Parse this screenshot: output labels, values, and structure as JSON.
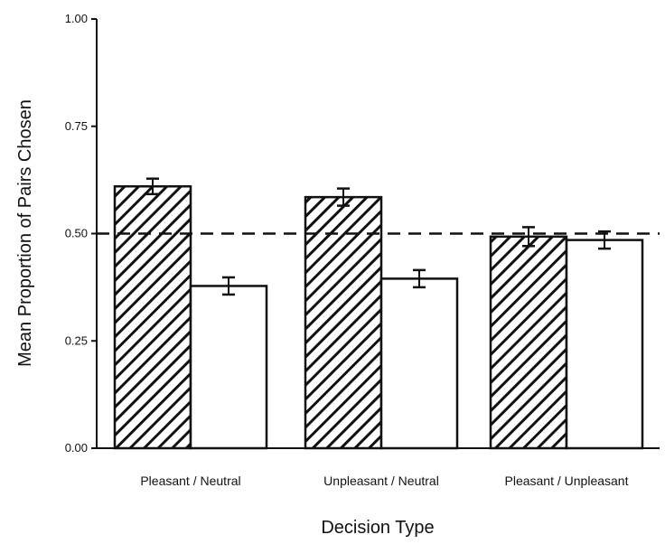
{
  "chart_data": {
    "type": "bar",
    "title": "",
    "xlabel": "Decision Type",
    "ylabel": "Mean Proportion of Pairs Chosen",
    "categories": [
      "Pleasant / Neutral",
      "Unpleasant / Neutral",
      "Pleasant / Unpleasant"
    ],
    "series": [
      {
        "pattern": "hatched",
        "values": [
          0.61,
          0.585,
          0.493
        ],
        "errors": [
          0.018,
          0.02,
          0.022
        ]
      },
      {
        "pattern": "open",
        "values": [
          0.378,
          0.395,
          0.485
        ],
        "errors": [
          0.02,
          0.02,
          0.02
        ]
      }
    ],
    "reference_line": {
      "value": 0.5,
      "style": "dashed"
    },
    "ylim": [
      0,
      1.0
    ],
    "yticks": [
      "0.00",
      "0.25",
      "0.50",
      "0.75",
      "1.00"
    ],
    "grid": false,
    "legend": "none",
    "colors": {
      "ink": "#111111",
      "bar_fill": "#ffffff"
    }
  }
}
